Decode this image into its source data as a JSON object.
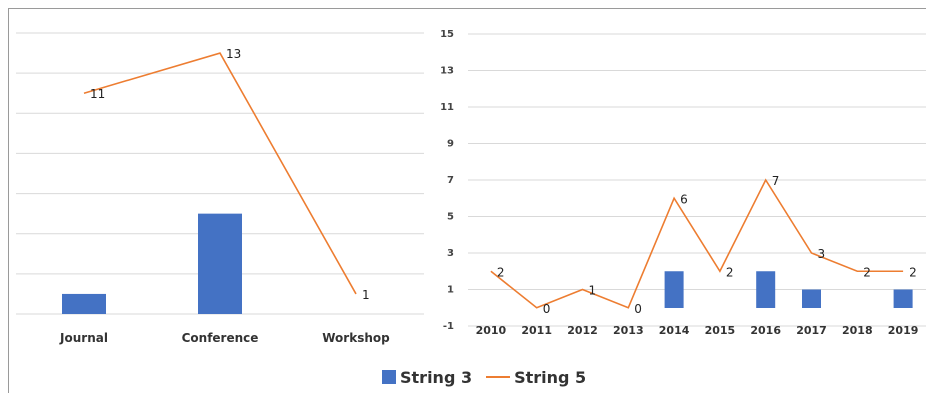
{
  "chart_data": [
    {
      "type": "bar+line",
      "categories": [
        "Journal",
        "Conference",
        "Workshop"
      ],
      "series": [
        {
          "name": "String 3",
          "type": "bar",
          "values": [
            1,
            5,
            null
          ]
        },
        {
          "name": "String 5",
          "type": "line",
          "values": [
            11,
            13,
            1
          ]
        }
      ],
      "data_labels": [
        "11",
        "13",
        "1"
      ],
      "ylim": [
        0,
        14
      ],
      "grid": true,
      "colors": {
        "bar": "#4472c4",
        "line": "#ed7d31",
        "grid": "#d9d9d9"
      }
    },
    {
      "type": "bar+line",
      "categories": [
        "2010",
        "2011",
        "2012",
        "2013",
        "2014",
        "2015",
        "2016",
        "2017",
        "2018",
        "2019"
      ],
      "series": [
        {
          "name": "String 3",
          "type": "bar",
          "values": [
            null,
            null,
            null,
            null,
            2,
            null,
            2,
            1,
            null,
            1
          ]
        },
        {
          "name": "String 5",
          "type": "line",
          "values": [
            2,
            0,
            1,
            0,
            6,
            2,
            7,
            3,
            2,
            2
          ]
        }
      ],
      "data_labels": [
        "2",
        "0",
        "1",
        "0",
        "6",
        "2",
        "7",
        "3",
        "2",
        "2"
      ],
      "ylim": [
        -1,
        15
      ],
      "yticks": [
        "-1",
        "1",
        "3",
        "5",
        "7",
        "9",
        "11",
        "13",
        "15"
      ],
      "grid": true,
      "colors": {
        "bar": "#4472c4",
        "line": "#ed7d31",
        "grid": "#d9d9d9"
      }
    }
  ],
  "legend": {
    "bar_label": "String 3",
    "line_label": "String 5",
    "placement": "bottom"
  }
}
